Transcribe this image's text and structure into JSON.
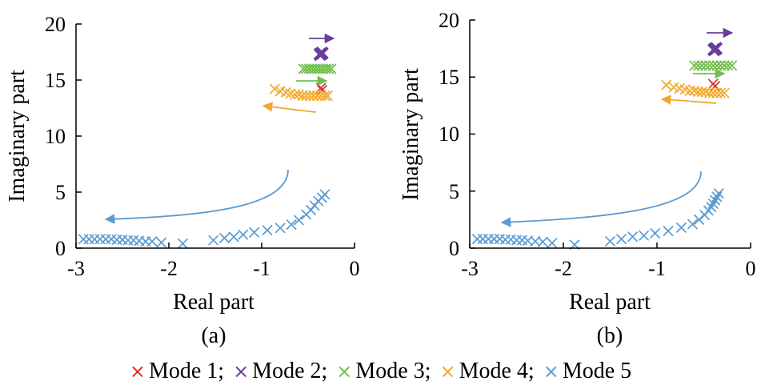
{
  "colors": {
    "mode1": "#d7332c",
    "mode2": "#6a3d9a",
    "mode3": "#6fbf4e",
    "mode4": "#f0a92a",
    "mode5": "#5b9bd2"
  },
  "legend": [
    {
      "label": "Mode 1;",
      "color": "#d7332c",
      "marker": "×"
    },
    {
      "label": "Mode 2;",
      "color": "#6a3d9a",
      "marker": "×"
    },
    {
      "label": "Mode 3;",
      "color": "#6fbf4e",
      "marker": "×"
    },
    {
      "label": "Mode 4;",
      "color": "#f0a92a",
      "marker": "×"
    },
    {
      "label": "Mode 5",
      "color": "#5b9bd2",
      "marker": "×"
    }
  ],
  "chart_data": [
    {
      "type": "scatter",
      "panel_label": "(a)",
      "xlabel": "Real part",
      "ylabel": "Imaginary part",
      "xlim": [
        -3,
        0
      ],
      "ylim": [
        0,
        20
      ],
      "xticks": [
        "-3",
        "-2",
        "-1",
        "0"
      ],
      "yticks": [
        "0",
        "5",
        "10",
        "15",
        "20"
      ],
      "grid": false,
      "series": [
        {
          "name": "Mode 1",
          "color": "#d7332c",
          "x": [
            -0.36,
            -0.35
          ],
          "y": [
            14.3,
            14.1
          ]
        },
        {
          "name": "Mode 2",
          "color": "#6a3d9a",
          "x": [
            -0.37,
            -0.35
          ],
          "y": [
            17.3,
            17.4
          ]
        },
        {
          "name": "Mode 3",
          "color": "#6fbf4e",
          "x": [
            -0.55,
            -0.52,
            -0.49,
            -0.46,
            -0.43,
            -0.4,
            -0.37,
            -0.34,
            -0.31,
            -0.28,
            -0.25
          ],
          "y": [
            16.0,
            16.0,
            16.0,
            16.0,
            16.0,
            16.0,
            16.0,
            16.0,
            16.0,
            16.0,
            16.0
          ]
        },
        {
          "name": "Mode 4",
          "color": "#f0a92a",
          "x": [
            -0.86,
            -0.8,
            -0.74,
            -0.69,
            -0.64,
            -0.6,
            -0.56,
            -0.52,
            -0.48,
            -0.44,
            -0.4,
            -0.36,
            -0.32,
            -0.29
          ],
          "y": [
            14.2,
            14.0,
            13.9,
            13.8,
            13.7,
            13.7,
            13.6,
            13.6,
            13.6,
            13.6,
            13.6,
            13.6,
            13.6,
            13.6
          ]
        },
        {
          "name": "Mode 5",
          "color": "#5b9bd2",
          "x": [
            -2.92,
            -2.86,
            -2.8,
            -2.74,
            -2.68,
            -2.62,
            -2.56,
            -2.5,
            -2.44,
            -2.38,
            -2.32,
            -2.25,
            -2.18,
            -2.08,
            -1.85,
            -1.52,
            -1.4,
            -1.3,
            -1.2,
            -1.08,
            -0.94,
            -0.8,
            -0.68,
            -0.6,
            -0.52,
            -0.47,
            -0.43,
            -0.39,
            -0.35,
            -0.32
          ],
          "y": [
            0.8,
            0.8,
            0.8,
            0.8,
            0.8,
            0.8,
            0.75,
            0.75,
            0.7,
            0.7,
            0.65,
            0.6,
            0.6,
            0.5,
            0.4,
            0.7,
            0.9,
            1.0,
            1.2,
            1.4,
            1.6,
            1.8,
            2.1,
            2.5,
            3.0,
            3.4,
            3.8,
            4.2,
            4.5,
            4.8
          ]
        }
      ]
    },
    {
      "type": "scatter",
      "panel_label": "(b)",
      "xlabel": "Real part",
      "ylabel": "Imaginary part",
      "xlim": [
        -3,
        0
      ],
      "ylim": [
        0,
        20
      ],
      "xticks": [
        "-3",
        "-2",
        "-1",
        "0"
      ],
      "yticks": [
        "0",
        "5",
        "10",
        "15",
        "20"
      ],
      "grid": false,
      "series": [
        {
          "name": "Mode 1",
          "color": "#d7332c",
          "x": [
            -0.4,
            -0.38
          ],
          "y": [
            14.4,
            14.2
          ]
        },
        {
          "name": "Mode 2",
          "color": "#6a3d9a",
          "x": [
            -0.39,
            -0.37
          ],
          "y": [
            17.4,
            17.5
          ]
        },
        {
          "name": "Mode 3",
          "color": "#6fbf4e",
          "x": [
            -0.6,
            -0.56,
            -0.52,
            -0.48,
            -0.44,
            -0.4,
            -0.36,
            -0.32,
            -0.28,
            -0.24,
            -0.2
          ],
          "y": [
            16.0,
            16.0,
            16.0,
            16.0,
            16.0,
            16.0,
            16.0,
            16.0,
            16.0,
            16.0,
            16.0
          ]
        },
        {
          "name": "Mode 4",
          "color": "#f0a92a",
          "x": [
            -0.9,
            -0.82,
            -0.76,
            -0.7,
            -0.65,
            -0.6,
            -0.56,
            -0.52,
            -0.48,
            -0.44,
            -0.4,
            -0.36,
            -0.32,
            -0.28
          ],
          "y": [
            14.3,
            14.1,
            14.0,
            13.9,
            13.8,
            13.8,
            13.7,
            13.7,
            13.7,
            13.6,
            13.6,
            13.6,
            13.6,
            13.6
          ]
        },
        {
          "name": "Mode 5",
          "color": "#5b9bd2",
          "x": [
            -2.92,
            -2.86,
            -2.8,
            -2.74,
            -2.68,
            -2.62,
            -2.56,
            -2.5,
            -2.44,
            -2.38,
            -2.3,
            -2.22,
            -2.12,
            -1.88,
            -1.5,
            -1.38,
            -1.26,
            -1.14,
            -1.02,
            -0.88,
            -0.74,
            -0.62,
            -0.55,
            -0.49,
            -0.45,
            -0.42,
            -0.4,
            -0.38,
            -0.36,
            -0.34
          ],
          "y": [
            0.8,
            0.8,
            0.8,
            0.8,
            0.8,
            0.75,
            0.75,
            0.7,
            0.7,
            0.65,
            0.6,
            0.55,
            0.45,
            0.3,
            0.6,
            0.8,
            1.0,
            1.1,
            1.3,
            1.5,
            1.8,
            2.1,
            2.5,
            2.9,
            3.3,
            3.6,
            3.9,
            4.2,
            4.5,
            4.8
          ]
        }
      ]
    }
  ]
}
